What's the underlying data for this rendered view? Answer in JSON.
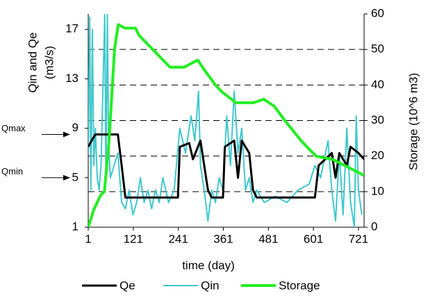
{
  "chart_data": {
    "type": "line",
    "ylabel": [
      "Qin and Qe",
      "(m3/s)"
    ],
    "y2label": "Storage (10^6 m3)",
    "xlabel": "time (day)",
    "xlim": [
      1,
      736
    ],
    "xticks": [
      1,
      121,
      241,
      361,
      481,
      601,
      721
    ],
    "ylim": [
      1,
      18.25
    ],
    "yticks": [
      1,
      5,
      9,
      13,
      17
    ],
    "y2lim": [
      0,
      60
    ],
    "y2ticks": [
      0,
      10,
      20,
      30,
      40,
      50,
      60
    ],
    "grid": true,
    "annotations": [
      {
        "text": "Qmax",
        "value": 8.5
      },
      {
        "text": "Qmin",
        "value": 5
      }
    ],
    "series": [
      {
        "name": "Qe",
        "color": "#000000",
        "x": [
          1,
          10,
          20,
          80,
          90,
          100,
          240,
          245,
          270,
          280,
          300,
          320,
          330,
          360,
          365,
          390,
          400,
          410,
          430,
          440,
          450,
          605,
          615,
          650,
          660,
          670,
          690,
          700,
          721,
          736
        ],
        "values": [
          7.5,
          8,
          8.5,
          8.5,
          6,
          3.4,
          3.4,
          7.5,
          7.8,
          6.5,
          8,
          4,
          3.4,
          3.4,
          7.5,
          8,
          5,
          8,
          7,
          4,
          3.4,
          3.4,
          6,
          7,
          5,
          7,
          6,
          7.5,
          7,
          6.5
        ]
      },
      {
        "name": "Qin",
        "color": "#40c8cc",
        "x": [
          1,
          5,
          8,
          12,
          16,
          20,
          25,
          30,
          35,
          40,
          45,
          48,
          52,
          55,
          60,
          70,
          80,
          90,
          100,
          110,
          120,
          130,
          140,
          150,
          160,
          170,
          180,
          190,
          200,
          215,
          230,
          245,
          260,
          275,
          285,
          295,
          300,
          310,
          320,
          330,
          340,
          350,
          360,
          370,
          380,
          390,
          400,
          410,
          420,
          430,
          440,
          450,
          470,
          500,
          530,
          560,
          590,
          605,
          620,
          640,
          650,
          660,
          670,
          680,
          690,
          700,
          710,
          715,
          721,
          730
        ],
        "values": [
          7,
          18,
          4,
          17,
          6,
          9,
          5,
          4,
          6,
          12,
          18.2,
          5,
          18.2,
          8,
          5,
          6,
          7,
          3,
          2.5,
          4,
          2,
          3,
          5,
          3,
          4,
          2.5,
          4,
          3,
          5,
          3,
          4,
          9,
          7,
          10,
          8,
          12,
          6,
          4,
          1.5,
          4,
          3,
          5,
          4,
          10,
          6,
          12,
          7,
          9,
          4,
          5,
          3,
          4,
          3,
          3.5,
          3,
          4,
          4.5,
          6,
          5,
          8,
          4,
          1.5,
          7,
          2,
          9,
          3,
          1,
          10,
          4,
          2
        ]
      },
      {
        "name": "Storage",
        "color": "#22ee22",
        "axis": "y2",
        "x": [
          1,
          16,
          34,
          44,
          57,
          71,
          81,
          99,
          127,
          136,
          173,
          219,
          256,
          293,
          312,
          340,
          358,
          395,
          441,
          469,
          497,
          525,
          571,
          608,
          654,
          691,
          728,
          736
        ],
        "values": [
          0,
          5,
          9,
          10,
          25,
          50,
          57,
          56,
          56,
          54,
          50,
          45,
          45,
          47,
          44,
          40,
          38,
          35,
          35,
          36,
          34,
          30,
          24,
          20,
          19,
          17,
          15,
          14.5
        ]
      }
    ]
  }
}
